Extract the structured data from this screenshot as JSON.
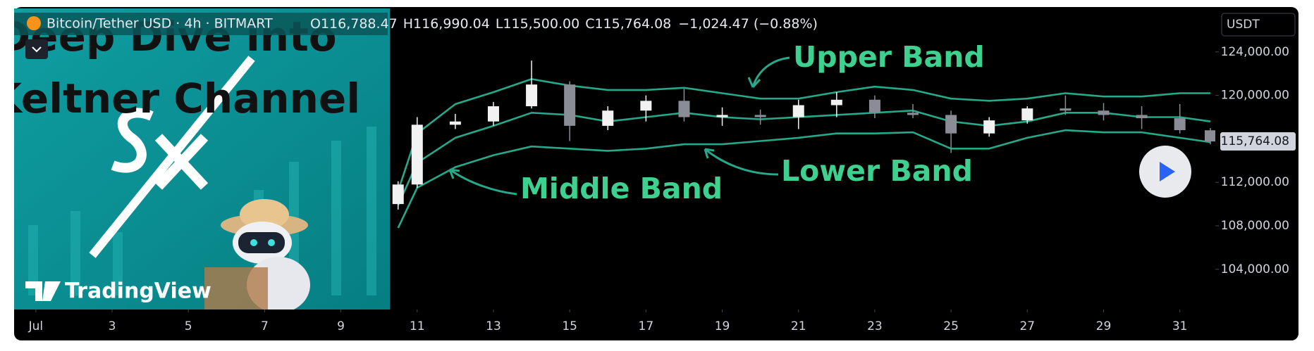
{
  "header": {
    "symbol": "Bitcoin/Tether USD · 4h · BITMART",
    "ohlc": [
      "O116,788.47",
      "H116,990.04",
      "L115,500.00",
      "C115,764.08"
    ],
    "change": "−1,024.47 (−0.88%)",
    "currency": "USDT"
  },
  "thumbnail": {
    "line1": "Deep Dive into",
    "line2": "Keltner Channel",
    "brand": "TradingView"
  },
  "chart_data": {
    "type": "candlestick",
    "x": [
      10.5,
      11,
      12,
      13,
      14,
      15,
      16,
      17,
      18,
      19,
      20,
      21,
      22,
      23,
      24,
      25,
      26,
      27,
      28,
      29,
      30,
      31,
      31.8
    ],
    "open": [
      110000,
      111800,
      117300,
      117600,
      119000,
      121000,
      117200,
      118600,
      119500,
      118000,
      118200,
      118000,
      119100,
      119600,
      118400,
      118200,
      116500,
      117700,
      118800,
      118600,
      118200,
      117900,
      116788.47
    ],
    "high": [
      112100,
      118000,
      118300,
      119400,
      123200,
      121300,
      119000,
      120000,
      120600,
      118900,
      118700,
      119600,
      120300,
      120000,
      119200,
      118600,
      118000,
      119000,
      120000,
      119300,
      119000,
      119200,
      116990.04
    ],
    "low": [
      109500,
      111500,
      116900,
      117200,
      118800,
      115800,
      116800,
      117600,
      117600,
      117200,
      117300,
      116900,
      118000,
      117900,
      117900,
      114700,
      116200,
      117400,
      118200,
      117700,
      116900,
      116500,
      115500.0
    ],
    "close": [
      111800,
      117300,
      117600,
      119000,
      121000,
      117200,
      118600,
      119500,
      118000,
      118200,
      118000,
      119100,
      119600,
      118400,
      118200,
      116500,
      117700,
      118800,
      118600,
      118200,
      117900,
      116800,
      115764.08
    ],
    "last_price_label": "115,764.08",
    "up_color": "#f2f2f2",
    "down_color": "#8a8d96",
    "overlays": [
      {
        "color": "#26a88a",
        "values": [
          111200,
          116500,
          119200,
          120300,
          121500,
          120900,
          120500,
          120500,
          120700,
          120200,
          119700,
          119700,
          120300,
          120800,
          120500,
          119700,
          119500,
          119700,
          120200,
          119900,
          119900,
          120200,
          120200
        ]
      },
      {
        "color": "#26a88a",
        "values": [
          109900,
          113800,
          116100,
          117200,
          118400,
          118200,
          117600,
          118000,
          118400,
          118000,
          117800,
          118000,
          118200,
          118400,
          118600,
          117600,
          117200,
          117600,
          118400,
          118400,
          118000,
          118000,
          117600
        ]
      },
      {
        "color": "#26a88a",
        "values": [
          107800,
          111500,
          113400,
          114500,
          115300,
          115100,
          114900,
          115100,
          115500,
          115500,
          115800,
          116100,
          116500,
          116500,
          116600,
          115100,
          115100,
          116100,
          116800,
          116600,
          116600,
          116100,
          115700
        ]
      }
    ],
    "annotations": [
      "Upper Band",
      "Middle Band",
      "Lower Band"
    ],
    "xlim": [
      0.43,
      31.93
    ],
    "xticks": [
      {
        "value": 1,
        "label": "Jul"
      },
      3,
      5,
      7,
      9,
      11,
      13,
      15,
      17,
      19,
      21,
      23,
      25,
      27,
      29,
      31
    ],
    "ylim": [
      100300,
      128000
    ],
    "yticks": [
      {
        "value": 104000,
        "label": "104,000.00"
      },
      {
        "value": 108000,
        "label": "108,000.00"
      },
      {
        "value": 112000,
        "label": "112,000.00"
      },
      {
        "value": 120000,
        "label": "120,000.00"
      },
      {
        "value": 124000,
        "label": "124,000.00"
      }
    ]
  }
}
